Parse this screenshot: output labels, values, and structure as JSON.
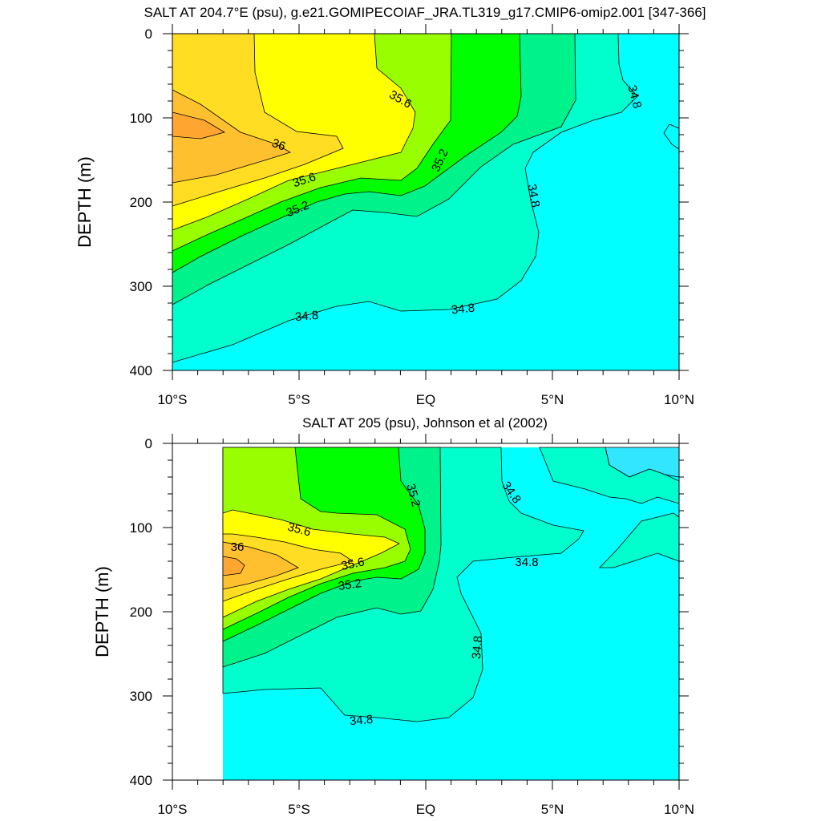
{
  "chart_data": [
    {
      "type": "contour",
      "title": "SALT AT 204.7°E (psu), g.e21.GOMIPECOIAF_JRA.TL319_g17.CMIP6-omip2.001 [347-366]",
      "ylabel": "DEPTH (m)",
      "xlim": [
        -10,
        10
      ],
      "ylim": [
        0,
        400
      ],
      "y_inverted": true,
      "xticks": [
        "10°S",
        "5°S",
        "EQ",
        "5°N",
        "10°N"
      ],
      "yticks": [
        "0",
        "100",
        "200",
        "300",
        "400"
      ],
      "contour_labels": [
        "35.6",
        "34.8",
        "36",
        "35.6",
        "35.2",
        "34.8",
        "35.2",
        "34.8",
        "34.8"
      ],
      "fill_colors": {
        "34.6": "#00ffff",
        "34.8": "#00ffcc",
        "35.0": "#00f28a",
        "35.2": "#00ff00",
        "35.4": "#99ff00",
        "35.6": "#ffff00",
        "35.8": "#ffdd22",
        "36.0": "#ffc030",
        "36.2": "#ffa530"
      }
    },
    {
      "type": "contour",
      "title": "SALT AT 205 (psu), Johnson et al (2002)",
      "ylabel": "DEPTH (m)",
      "xlim": [
        -10,
        10
      ],
      "ylim": [
        0,
        400
      ],
      "y_inverted": true,
      "data_xrange": [
        -8,
        10
      ],
      "xticks": [
        "10°S",
        "5°S",
        "EQ",
        "5°N",
        "10°N"
      ],
      "yticks": [
        "0",
        "100",
        "200",
        "300",
        "400"
      ],
      "contour_labels": [
        "35.2",
        "34.8",
        "35.6",
        "36",
        "35.6",
        "35.2",
        "34.8",
        "34.8",
        "34.8"
      ],
      "fill_colors": {
        "34.4": "#33e6ff",
        "34.6": "#00ffff",
        "34.8": "#00ffcc",
        "35.0": "#00f28a",
        "35.2": "#00ff00",
        "35.4": "#99ff00",
        "35.6": "#ffff00",
        "35.8": "#ffdd22",
        "36.0": "#ffc030",
        "36.2": "#ffa530"
      }
    }
  ]
}
